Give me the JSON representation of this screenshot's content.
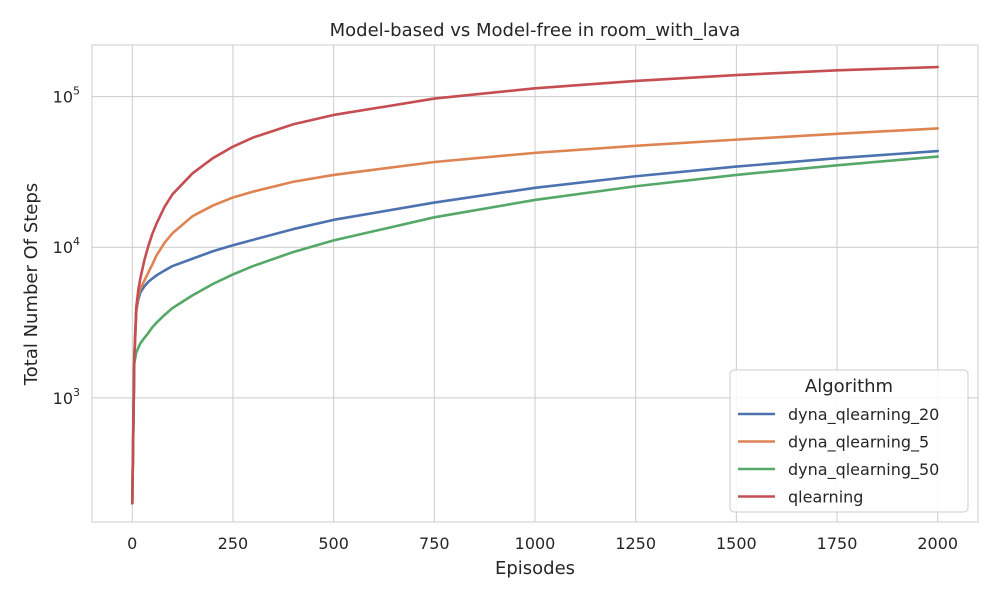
{
  "chart_data": {
    "type": "line",
    "title": "Model-based vs Model-free in room_with_lava",
    "xlabel": "Episodes",
    "ylabel": "Total Number Of Steps",
    "yscale": "log",
    "xlim": [
      -100,
      2100
    ],
    "ylim": [
      150,
      220000
    ],
    "grid": true,
    "x_ticks": [
      0,
      250,
      500,
      750,
      1000,
      1250,
      1500,
      1750,
      2000
    ],
    "y_ticks": [
      {
        "value": 1000,
        "base": "10",
        "exp": "3"
      },
      {
        "value": 10000,
        "base": "10",
        "exp": "4"
      },
      {
        "value": 100000,
        "base": "10",
        "exp": "5"
      }
    ],
    "legend": {
      "title": "Algorithm",
      "position": "lower-right"
    },
    "series": [
      {
        "name": "dyna_qlearning_20",
        "color": "#4c72b0",
        "x": [
          0,
          5,
          10,
          15,
          20,
          30,
          40,
          50,
          60,
          80,
          100,
          150,
          200,
          250,
          300,
          400,
          500,
          750,
          1000,
          1250,
          1500,
          1750,
          2000
        ],
        "y": [
          200,
          1800,
          3800,
          4500,
          5000,
          5500,
          5900,
          6200,
          6500,
          7000,
          7500,
          8400,
          9400,
          10300,
          11200,
          13200,
          15200,
          19800,
          24800,
          29600,
          34300,
          39000,
          43500
        ]
      },
      {
        "name": "dyna_qlearning_5",
        "color": "#dd8452",
        "x": [
          0,
          5,
          10,
          15,
          20,
          30,
          40,
          50,
          60,
          80,
          100,
          150,
          200,
          250,
          300,
          400,
          500,
          750,
          1000,
          1250,
          1500,
          1750,
          2000
        ],
        "y": [
          200,
          1800,
          3800,
          4800,
          5300,
          6000,
          6800,
          7700,
          8800,
          10700,
          12400,
          16100,
          18900,
          21400,
          23400,
          27200,
          30200,
          36800,
          42300,
          47100,
          51800,
          56600,
          61500
        ]
      },
      {
        "name": "dyna_qlearning_50",
        "color": "#55a868",
        "x": [
          0,
          5,
          10,
          15,
          20,
          30,
          40,
          50,
          60,
          80,
          100,
          150,
          200,
          250,
          300,
          400,
          500,
          750,
          1000,
          1250,
          1500,
          1750,
          2000
        ],
        "y": [
          200,
          1700,
          2000,
          2150,
          2300,
          2500,
          2700,
          2950,
          3150,
          3550,
          3950,
          4800,
          5700,
          6600,
          7500,
          9300,
          11100,
          15800,
          20600,
          25400,
          30200,
          35000,
          40000
        ]
      },
      {
        "name": "qlearning",
        "color": "#c44e52",
        "x": [
          0,
          5,
          10,
          15,
          20,
          30,
          40,
          50,
          60,
          80,
          100,
          150,
          200,
          250,
          300,
          400,
          500,
          750,
          1000,
          1250,
          1500,
          1750,
          2000
        ],
        "y": [
          200,
          1900,
          4000,
          5200,
          6200,
          8200,
          10200,
          12300,
          14300,
          18500,
          22500,
          31000,
          39000,
          46500,
          53500,
          65500,
          75500,
          97000,
          113500,
          127000,
          139000,
          149500,
          157000
        ]
      }
    ]
  }
}
